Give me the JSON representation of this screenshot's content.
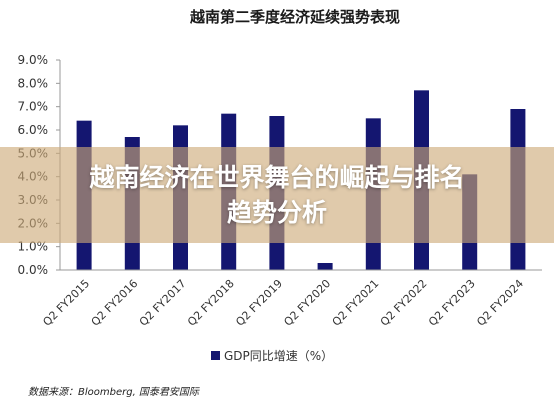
{
  "chart_data": {
    "type": "bar",
    "title": "越南第二季度经济延续强势表现",
    "categories": [
      "Q2 FY2015",
      "Q2 FY2016",
      "Q2 FY2017",
      "Q2 FY2018",
      "Q2 FY2019",
      "Q2 FY2020",
      "Q2 FY2021",
      "Q2 FY2022",
      "Q2 FY2023",
      "Q2 FY2024"
    ],
    "series": [
      {
        "name": "GDP同比增速（%）",
        "values": [
          6.4,
          5.7,
          6.2,
          6.7,
          6.6,
          0.3,
          6.5,
          7.7,
          4.1,
          6.9
        ]
      }
    ],
    "y_ticks": [
      "0.0%",
      "1.0%",
      "2.0%",
      "3.0%",
      "4.0%",
      "5.0%",
      "6.0%",
      "7.0%",
      "8.0%",
      "9.0%"
    ],
    "ylim": [
      0,
      9
    ],
    "legend_position": "bottom",
    "bar_color": "#141670",
    "grid": false
  },
  "overlay": {
    "line1": "越南经济在世界舞台的崛起与排名",
    "line2": "趋势分析"
  },
  "source": "数据来源：Bloomberg, 国泰君安国际"
}
